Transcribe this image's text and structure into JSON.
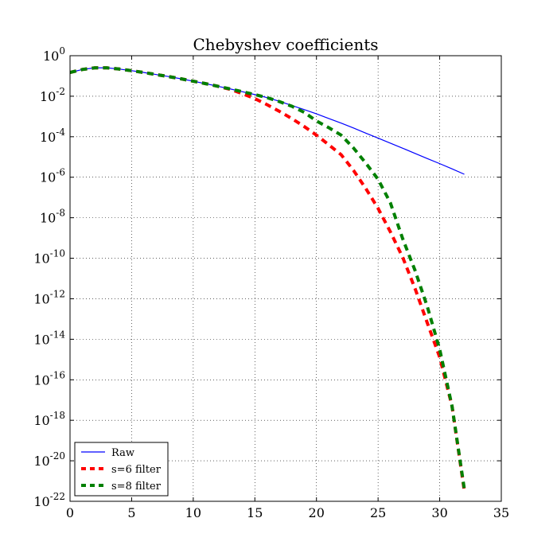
{
  "chart_data": {
    "type": "line",
    "title": "Chebyshev coefficients",
    "x": [
      0,
      1,
      2,
      3,
      4,
      5,
      6,
      7,
      8,
      9,
      10,
      11,
      12,
      13,
      14,
      15,
      16,
      17,
      18,
      19,
      20,
      21,
      22,
      23,
      24,
      25,
      26,
      27,
      28,
      29,
      30,
      31,
      32
    ],
    "series": [
      {
        "name": "Raw",
        "color": "#0000ff",
        "dashed": false,
        "values": [
          0.148,
          0.209,
          0.251,
          0.251,
          0.219,
          0.182,
          0.148,
          0.117,
          0.0933,
          0.0724,
          0.055,
          0.0417,
          0.0309,
          0.0229,
          0.0166,
          0.012,
          0.0085,
          0.0056,
          0.0035,
          0.0022,
          0.00135,
          0.00079,
          0.00047,
          0.00027,
          0.00015,
          8.5e-05,
          4.8e-05,
          2.7e-05,
          1.5e-05,
          8.3e-06,
          4.7e-06,
          2.6e-06,
          1.4e-06
        ]
      },
      {
        "name": "s=6 filter",
        "color": "#ff0000",
        "dashed": true,
        "values": [
          0.148,
          0.209,
          0.251,
          0.251,
          0.219,
          0.182,
          0.148,
          0.117,
          0.0933,
          0.0724,
          0.055,
          0.0417,
          0.0309,
          0.0219,
          0.0132,
          0.0076,
          0.0038,
          0.00178,
          0.00079,
          0.00032,
          0.00012,
          4e-05,
          1.3e-05,
          2.2e-06,
          2.8e-07,
          2.9e-08,
          2e-09,
          1.1e-10,
          3.2e-12,
          6.3e-14,
          1.3e-15,
          5e-18,
          3.2e-22
        ]
      },
      {
        "name": "s=8 filter",
        "color": "#008000",
        "dashed": true,
        "values": [
          0.148,
          0.209,
          0.251,
          0.251,
          0.219,
          0.182,
          0.148,
          0.117,
          0.0933,
          0.0724,
          0.055,
          0.0417,
          0.0309,
          0.0229,
          0.0166,
          0.012,
          0.0085,
          0.0054,
          0.0032,
          0.0016,
          0.0006,
          0.00028,
          0.00012,
          2.8e-05,
          5e-06,
          7.9e-07,
          5.4e-08,
          9.1e-10,
          2.5e-11,
          4e-13,
          3.2e-15,
          5e-18,
          4e-22
        ]
      }
    ],
    "xlim": [
      0,
      35
    ],
    "xticks": [
      0,
      5,
      10,
      15,
      20,
      25,
      30,
      35
    ],
    "ylim": [
      1e-22,
      1
    ],
    "log_y": true,
    "yticks": [
      {
        "value": 1e-22,
        "label": [
          "10",
          "-22"
        ]
      },
      {
        "value": 1e-20,
        "label": [
          "10",
          "-20"
        ]
      },
      {
        "value": 1e-18,
        "label": [
          "10",
          "-18"
        ]
      },
      {
        "value": 1e-16,
        "label": [
          "10",
          "-16"
        ]
      },
      {
        "value": 1e-14,
        "label": [
          "10",
          "-14"
        ]
      },
      {
        "value": 1e-12,
        "label": [
          "10",
          "-12"
        ]
      },
      {
        "value": 1e-10,
        "label": [
          "10",
          "-10"
        ]
      },
      {
        "value": 1e-08,
        "label": [
          "10",
          "-8"
        ]
      },
      {
        "value": 1e-06,
        "label": [
          "10",
          "-6"
        ]
      },
      {
        "value": 0.0001,
        "label": [
          "10",
          "-4"
        ]
      },
      {
        "value": 0.01,
        "label": [
          "10",
          "-2"
        ]
      },
      {
        "value": 1,
        "label": [
          "10",
          "0"
        ]
      }
    ],
    "grid": true,
    "legend": "lower left"
  }
}
